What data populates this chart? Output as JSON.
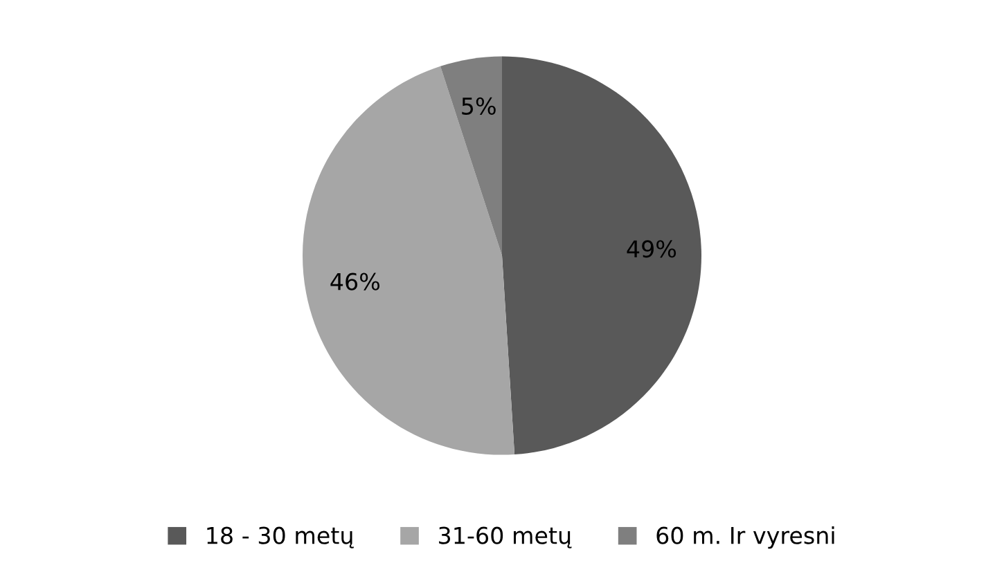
{
  "chart_data": {
    "type": "pie",
    "categories": [
      "18 - 30 metų",
      "31-60 metų",
      "60 m. Ir vyresni"
    ],
    "values": [
      49,
      46,
      5
    ],
    "value_labels": [
      "49%",
      "46%",
      "5%"
    ],
    "colors": [
      "#595959",
      "#a6a6a6",
      "#7f7f7f"
    ],
    "legend": "bottom"
  }
}
